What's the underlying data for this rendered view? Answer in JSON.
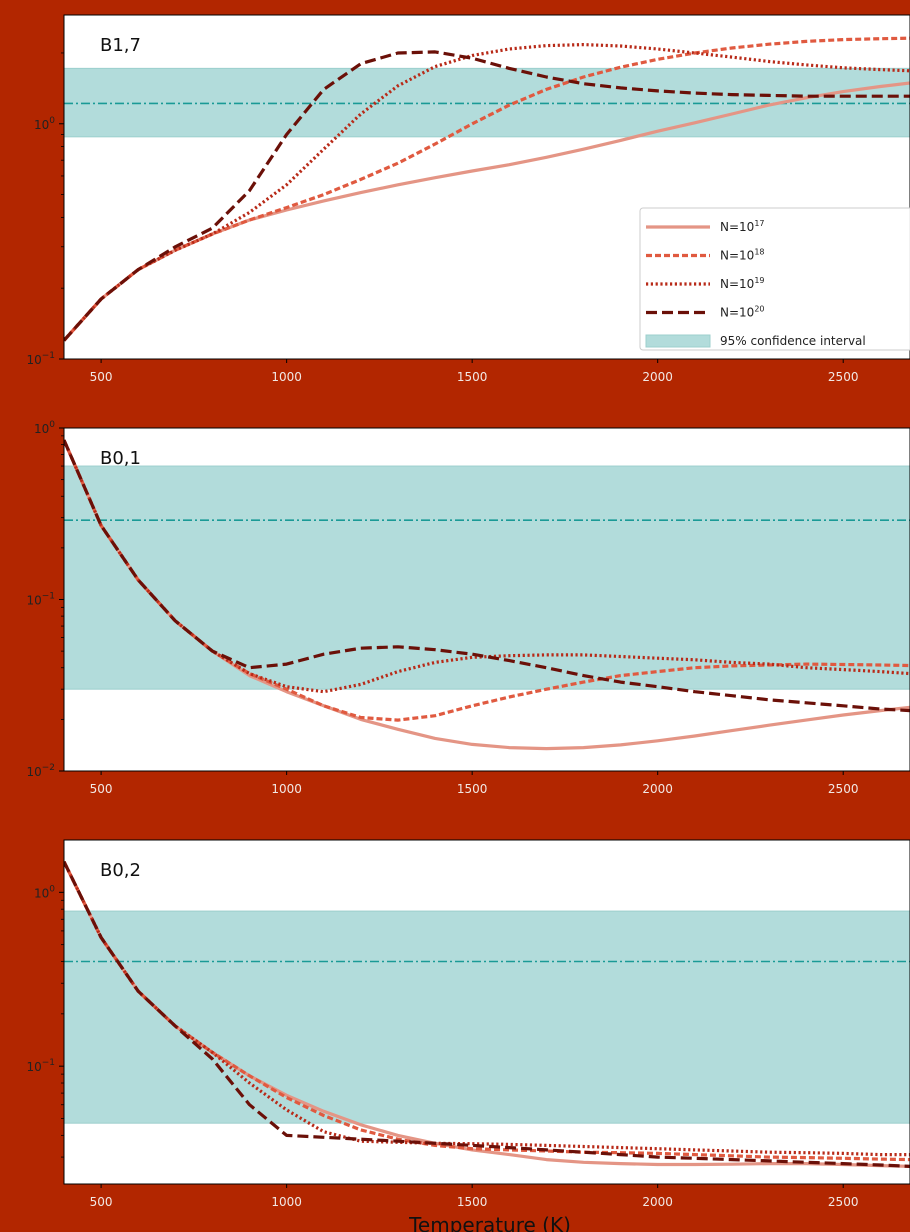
{
  "figure": {
    "xlabel": "Temperature (K)",
    "background": "#b22600",
    "band_color": "#b2dcdb",
    "band_edge_color": "#9ccfcd",
    "median_line_color": "#1a9a96"
  },
  "legend": {
    "entries": [
      {
        "base": "N=10",
        "exp": "17",
        "style": "solid",
        "color": "#e49585"
      },
      {
        "base": "N=10",
        "exp": "18",
        "style": "dashed-dense",
        "color": "#e05a40"
      },
      {
        "base": "N=10",
        "exp": "19",
        "style": "dotted",
        "color": "#b82a18"
      },
      {
        "base": "N=10",
        "exp": "20",
        "style": "dashed",
        "color": "#6b1008"
      }
    ],
    "band_label": "95% confidence interval",
    "placement": "lower-right of top panel"
  },
  "chart_data": [
    {
      "type": "line",
      "title": "B1,7",
      "xlabel": "",
      "ylabel": "",
      "yscale": "log",
      "xlim": [
        400,
        2680
      ],
      "ylim": [
        0.1,
        2.9
      ],
      "xticks": [
        500,
        1000,
        1500,
        2000,
        2500
      ],
      "yticks": [
        {
          "base": "10",
          "exp": "0",
          "value": 1
        },
        {
          "base": "10",
          "exp": "−1",
          "value": 0.1
        }
      ],
      "band": [
        0.88,
        1.72
      ],
      "median": 1.22,
      "series": [
        {
          "name": "N=10^17",
          "x": [
            400,
            500,
            600,
            700,
            800,
            900,
            1000,
            1100,
            1200,
            1300,
            1400,
            1500,
            1600,
            1700,
            1800,
            1900,
            2000,
            2100,
            2200,
            2300,
            2400,
            2500,
            2600,
            2680
          ],
          "y": [
            0.12,
            0.18,
            0.24,
            0.29,
            0.34,
            0.39,
            0.43,
            0.47,
            0.51,
            0.55,
            0.59,
            0.63,
            0.67,
            0.72,
            0.78,
            0.85,
            0.93,
            1.01,
            1.1,
            1.2,
            1.29,
            1.37,
            1.44,
            1.49
          ]
        },
        {
          "name": "N=10^18",
          "x": [
            400,
            500,
            600,
            700,
            800,
            900,
            1000,
            1100,
            1200,
            1300,
            1400,
            1500,
            1600,
            1700,
            1800,
            1900,
            2000,
            2100,
            2200,
            2300,
            2400,
            2500,
            2600,
            2680
          ],
          "y": [
            0.12,
            0.18,
            0.24,
            0.29,
            0.34,
            0.39,
            0.44,
            0.5,
            0.58,
            0.68,
            0.82,
            1.0,
            1.2,
            1.4,
            1.58,
            1.74,
            1.88,
            2.0,
            2.1,
            2.18,
            2.24,
            2.28,
            2.3,
            2.31
          ]
        },
        {
          "name": "N=10^19",
          "x": [
            400,
            500,
            600,
            700,
            800,
            900,
            1000,
            1100,
            1200,
            1300,
            1400,
            1500,
            1600,
            1700,
            1800,
            1900,
            2000,
            2100,
            2200,
            2300,
            2400,
            2500,
            2600,
            2680
          ],
          "y": [
            0.12,
            0.18,
            0.24,
            0.29,
            0.34,
            0.42,
            0.55,
            0.78,
            1.1,
            1.45,
            1.75,
            1.95,
            2.08,
            2.15,
            2.17,
            2.14,
            2.08,
            2.0,
            1.92,
            1.84,
            1.78,
            1.73,
            1.7,
            1.68
          ]
        },
        {
          "name": "N=10^20",
          "x": [
            400,
            500,
            600,
            700,
            800,
            900,
            1000,
            1100,
            1200,
            1300,
            1400,
            1500,
            1600,
            1700,
            1800,
            1900,
            2000,
            2100,
            2200,
            2300,
            2400,
            2500,
            2600,
            2680
          ],
          "y": [
            0.12,
            0.18,
            0.24,
            0.3,
            0.36,
            0.52,
            0.9,
            1.4,
            1.8,
            2.0,
            2.02,
            1.9,
            1.72,
            1.58,
            1.48,
            1.42,
            1.38,
            1.35,
            1.33,
            1.32,
            1.31,
            1.31,
            1.31,
            1.31
          ]
        }
      ]
    },
    {
      "type": "line",
      "title": "B0,1",
      "xlabel": "",
      "ylabel": "",
      "yscale": "log",
      "xlim": [
        400,
        2680
      ],
      "ylim": [
        0.01,
        1.0
      ],
      "xticks": [
        500,
        1000,
        1500,
        2000,
        2500
      ],
      "yticks": [
        {
          "base": "10",
          "exp": "0",
          "value": 1
        },
        {
          "base": "10",
          "exp": "−1",
          "value": 0.1
        },
        {
          "base": "10",
          "exp": "−2",
          "value": 0.01
        }
      ],
      "band": [
        0.03,
        0.6
      ],
      "median": 0.29,
      "series": [
        {
          "name": "N=10^17",
          "x": [
            400,
            500,
            600,
            700,
            800,
            900,
            1000,
            1100,
            1200,
            1300,
            1400,
            1500,
            1600,
            1700,
            1800,
            1900,
            2000,
            2100,
            2200,
            2300,
            2400,
            2500,
            2600,
            2680
          ],
          "y": [
            0.85,
            0.27,
            0.13,
            0.075,
            0.05,
            0.036,
            0.029,
            0.024,
            0.02,
            0.0175,
            0.0155,
            0.0143,
            0.0137,
            0.0135,
            0.0137,
            0.0142,
            0.015,
            0.016,
            0.0172,
            0.0185,
            0.0198,
            0.0212,
            0.0225,
            0.0235
          ]
        },
        {
          "name": "N=10^18",
          "x": [
            400,
            500,
            600,
            700,
            800,
            900,
            1000,
            1100,
            1200,
            1300,
            1400,
            1500,
            1600,
            1700,
            1800,
            1900,
            2000,
            2100,
            2200,
            2300,
            2400,
            2500,
            2600,
            2680
          ],
          "y": [
            0.85,
            0.27,
            0.13,
            0.075,
            0.05,
            0.037,
            0.03,
            0.024,
            0.0205,
            0.0198,
            0.021,
            0.024,
            0.027,
            0.03,
            0.033,
            0.036,
            0.038,
            0.04,
            0.041,
            0.0415,
            0.042,
            0.0418,
            0.0415,
            0.0412
          ]
        },
        {
          "name": "N=10^19",
          "x": [
            400,
            500,
            600,
            700,
            800,
            900,
            1000,
            1100,
            1200,
            1300,
            1400,
            1500,
            1600,
            1700,
            1800,
            1900,
            2000,
            2100,
            2200,
            2300,
            2400,
            2500,
            2600,
            2680
          ],
          "y": [
            0.85,
            0.27,
            0.13,
            0.075,
            0.05,
            0.037,
            0.031,
            0.029,
            0.032,
            0.038,
            0.043,
            0.046,
            0.047,
            0.0475,
            0.0475,
            0.0465,
            0.0455,
            0.0445,
            0.043,
            0.042,
            0.04,
            0.039,
            0.038,
            0.037
          ]
        },
        {
          "name": "N=10^20",
          "x": [
            400,
            500,
            600,
            700,
            800,
            900,
            1000,
            1100,
            1200,
            1300,
            1400,
            1500,
            1600,
            1700,
            1800,
            1900,
            2000,
            2100,
            2200,
            2300,
            2400,
            2500,
            2600,
            2680
          ],
          "y": [
            0.85,
            0.27,
            0.13,
            0.075,
            0.05,
            0.04,
            0.042,
            0.048,
            0.052,
            0.053,
            0.051,
            0.048,
            0.044,
            0.04,
            0.036,
            0.033,
            0.031,
            0.029,
            0.0275,
            0.026,
            0.025,
            0.024,
            0.023,
            0.0225
          ]
        }
      ]
    },
    {
      "type": "line",
      "title": "B0,2",
      "xlabel": "Temperature (K)",
      "ylabel": "",
      "yscale": "log",
      "xlim": [
        400,
        2680
      ],
      "ylim": [
        0.021,
        2.0
      ],
      "xticks": [
        500,
        1000,
        1500,
        2000,
        2500
      ],
      "yticks": [
        {
          "base": "10",
          "exp": "0",
          "value": 1
        },
        {
          "base": "10",
          "exp": "−1",
          "value": 0.1
        }
      ],
      "band": [
        0.047,
        0.78
      ],
      "median": 0.4,
      "series": [
        {
          "name": "N=10^17",
          "x": [
            400,
            500,
            600,
            700,
            800,
            900,
            1000,
            1100,
            1200,
            1300,
            1400,
            1500,
            1600,
            1700,
            1800,
            1900,
            2000,
            2100,
            2200,
            2300,
            2400,
            2500,
            2600,
            2680
          ],
          "y": [
            1.5,
            0.55,
            0.27,
            0.17,
            0.12,
            0.088,
            0.068,
            0.055,
            0.046,
            0.04,
            0.036,
            0.033,
            0.031,
            0.029,
            0.028,
            0.0275,
            0.0272,
            0.0272,
            0.0273,
            0.0275,
            0.0275,
            0.0272,
            0.0268,
            0.0265
          ]
        },
        {
          "name": "N=10^18",
          "x": [
            400,
            500,
            600,
            700,
            800,
            900,
            1000,
            1100,
            1200,
            1300,
            1400,
            1500,
            1600,
            1700,
            1800,
            1900,
            2000,
            2100,
            2200,
            2300,
            2400,
            2500,
            2600,
            2680
          ],
          "y": [
            1.5,
            0.55,
            0.27,
            0.17,
            0.12,
            0.088,
            0.066,
            0.052,
            0.043,
            0.038,
            0.035,
            0.0335,
            0.033,
            0.0325,
            0.032,
            0.0318,
            0.0315,
            0.031,
            0.0305,
            0.03,
            0.0298,
            0.0295,
            0.0292,
            0.029
          ]
        },
        {
          "name": "N=10^19",
          "x": [
            400,
            500,
            600,
            700,
            800,
            900,
            1000,
            1100,
            1200,
            1300,
            1400,
            1500,
            1600,
            1700,
            1800,
            1900,
            2000,
            2100,
            2200,
            2300,
            2400,
            2500,
            2600,
            2680
          ],
          "y": [
            1.5,
            0.55,
            0.27,
            0.17,
            0.12,
            0.08,
            0.056,
            0.042,
            0.037,
            0.0365,
            0.036,
            0.0358,
            0.0355,
            0.035,
            0.0345,
            0.034,
            0.0335,
            0.033,
            0.0325,
            0.032,
            0.0318,
            0.0315,
            0.031,
            0.031
          ]
        },
        {
          "name": "N=10^20",
          "x": [
            400,
            500,
            600,
            700,
            800,
            900,
            1000,
            1100,
            1200,
            1300,
            1400,
            1500,
            1600,
            1700,
            1800,
            1900,
            2000,
            2100,
            2200,
            2300,
            2400,
            2500,
            2600,
            2680
          ],
          "y": [
            1.5,
            0.55,
            0.27,
            0.17,
            0.11,
            0.06,
            0.04,
            0.039,
            0.038,
            0.037,
            0.036,
            0.035,
            0.034,
            0.033,
            0.032,
            0.031,
            0.03,
            0.0295,
            0.029,
            0.0285,
            0.028,
            0.0275,
            0.027,
            0.0265
          ]
        }
      ]
    }
  ]
}
